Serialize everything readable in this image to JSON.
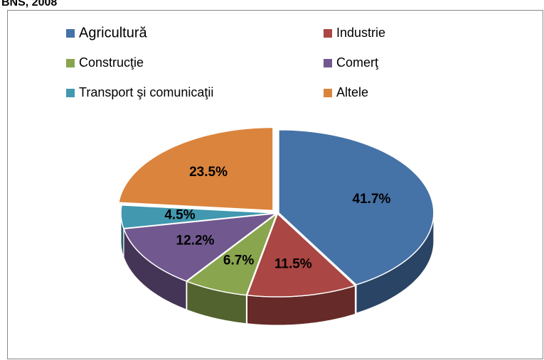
{
  "chart_data": {
    "type": "pie",
    "title": "BNS, 2008",
    "categories": [
      "Agricultură",
      "Industrie",
      "Construcţie",
      "Comerţ",
      "Transport şi comunicaţii",
      "Altele"
    ],
    "values": [
      41.7,
      11.5,
      6.7,
      12.2,
      4.5,
      23.5
    ],
    "value_labels": [
      "41.7%",
      "11.5%",
      "6.7%",
      "12.2%",
      "4.5%",
      "23.5%"
    ],
    "colors": [
      "#4572a7",
      "#aa4643",
      "#89a54e",
      "#71588f",
      "#4198af",
      "#db843d"
    ],
    "legend": "top"
  }
}
